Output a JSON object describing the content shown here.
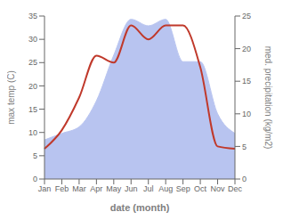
{
  "chart_data": {
    "type": "line",
    "categories": [
      "Jan",
      "Feb",
      "Mar",
      "Apr",
      "May",
      "Jun",
      "Jul",
      "Aug",
      "Sep",
      "Oct",
      "Nov",
      "Dec"
    ],
    "series": [
      {
        "type": "line",
        "color": "#c0392b",
        "axis": "y",
        "values": [
          6.5,
          10.5,
          17.5,
          26.5,
          25.0,
          33.0,
          30.0,
          33.0,
          33.0,
          24.0,
          7.0,
          6.5
        ]
      },
      {
        "type": "area",
        "color": "#b8c4f0",
        "axis": "y2",
        "values": [
          6.0,
          7.0,
          8.0,
          12.0,
          19.0,
          24.5,
          23.5,
          24.5,
          18.0,
          18.0,
          10.0,
          7.0
        ]
      }
    ],
    "xlabel": "date (month)",
    "ylabel": "max temp (C)",
    "y2label": "med. precipitation (kg/m2)",
    "ylim": [
      0,
      35
    ],
    "yticks": [
      0,
      5,
      10,
      15,
      20,
      25,
      30,
      35
    ],
    "y2lim": [
      0,
      25
    ],
    "y2ticks": [
      0,
      5,
      10,
      15,
      20,
      25
    ],
    "grid": false
  }
}
